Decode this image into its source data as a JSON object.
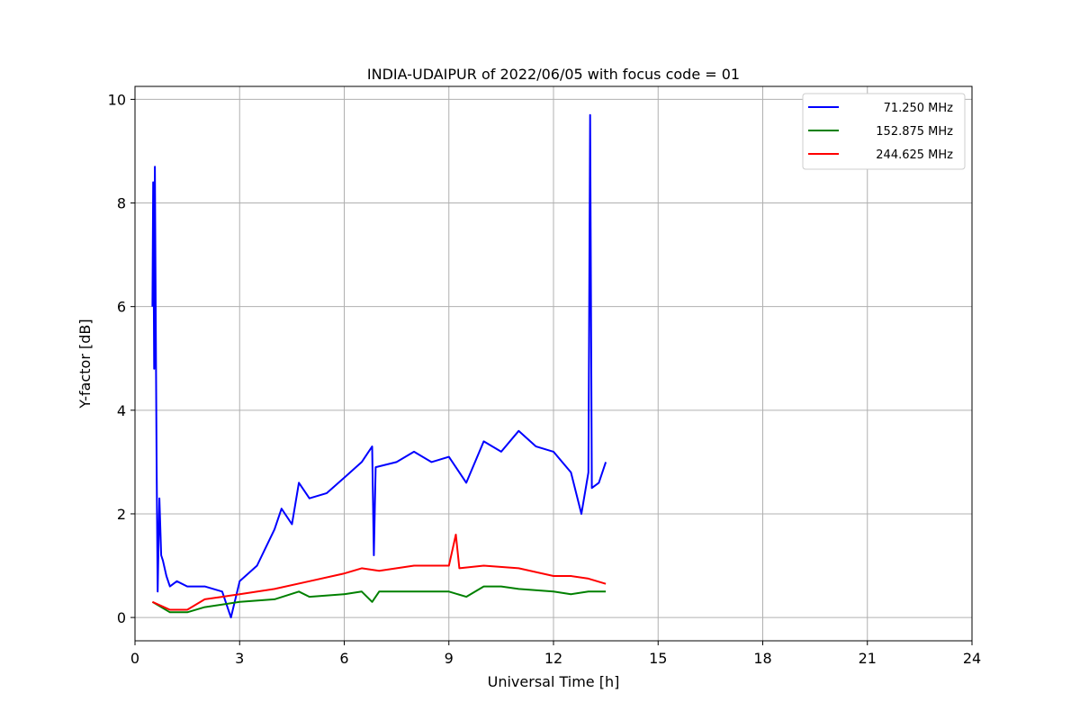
{
  "chart_data": {
    "type": "line",
    "title": "INDIA-UDAIPUR of 2022/06/05 with focus code = 01",
    "xlabel": "Universal Time [h]",
    "ylabel": "Y-factor [dB]",
    "xlim": [
      0,
      24
    ],
    "ylim": [
      -0.45,
      10.25
    ],
    "xticks": [
      "0",
      "3",
      "6",
      "9",
      "12",
      "15",
      "18",
      "21",
      "24"
    ],
    "yticks": [
      "0",
      "2",
      "4",
      "6",
      "8",
      "10"
    ],
    "grid": true,
    "legend_position": "top-right",
    "series": [
      {
        "name": "71.250 MHz",
        "color": "#0000ff",
        "x": [
          0.5,
          0.52,
          0.55,
          0.57,
          0.6,
          0.62,
          0.65,
          0.7,
          0.75,
          0.8,
          0.9,
          1.0,
          1.2,
          1.5,
          2.0,
          2.5,
          2.75,
          3.0,
          3.5,
          4.0,
          4.2,
          4.5,
          4.7,
          5.0,
          5.5,
          6.0,
          6.5,
          6.8,
          6.85,
          6.9,
          7.5,
          8.0,
          8.5,
          9.0,
          9.5,
          10.0,
          10.5,
          11.0,
          11.5,
          12.0,
          12.5,
          12.8,
          13.0,
          13.05,
          13.1,
          13.3,
          13.5
        ],
        "y": [
          6.0,
          8.4,
          4.8,
          8.7,
          5.0,
          3.0,
          0.5,
          2.3,
          1.2,
          1.1,
          0.8,
          0.6,
          0.7,
          0.6,
          0.6,
          0.5,
          0.0,
          0.7,
          1.0,
          1.7,
          2.1,
          1.8,
          2.6,
          2.3,
          2.4,
          2.7,
          3.0,
          3.3,
          1.2,
          2.9,
          3.0,
          3.2,
          3.0,
          3.1,
          2.6,
          3.4,
          3.2,
          3.6,
          3.3,
          3.2,
          2.8,
          2.0,
          2.8,
          9.7,
          2.5,
          2.6,
          3.0
        ]
      },
      {
        "name": "152.875 MHz",
        "color": "#008000",
        "x": [
          0.5,
          1.0,
          1.5,
          2.0,
          3.0,
          4.0,
          4.7,
          5.0,
          6.0,
          6.5,
          6.8,
          7.0,
          8.0,
          9.0,
          9.5,
          10.0,
          10.5,
          11.0,
          12.0,
          12.5,
          13.0,
          13.5
        ],
        "y": [
          0.3,
          0.1,
          0.1,
          0.2,
          0.3,
          0.35,
          0.5,
          0.4,
          0.45,
          0.5,
          0.3,
          0.5,
          0.5,
          0.5,
          0.4,
          0.6,
          0.6,
          0.55,
          0.5,
          0.45,
          0.5,
          0.5
        ]
      },
      {
        "name": "244.625 MHz",
        "color": "#ff0000",
        "x": [
          0.5,
          1.0,
          1.5,
          2.0,
          2.5,
          3.0,
          4.0,
          5.0,
          6.0,
          6.5,
          7.0,
          8.0,
          9.0,
          9.2,
          9.3,
          10.0,
          11.0,
          12.0,
          12.5,
          13.0,
          13.5
        ],
        "y": [
          0.3,
          0.15,
          0.15,
          0.35,
          0.4,
          0.45,
          0.55,
          0.7,
          0.85,
          0.95,
          0.9,
          1.0,
          1.0,
          1.6,
          0.95,
          1.0,
          0.95,
          0.8,
          0.8,
          0.75,
          0.65
        ]
      }
    ]
  }
}
